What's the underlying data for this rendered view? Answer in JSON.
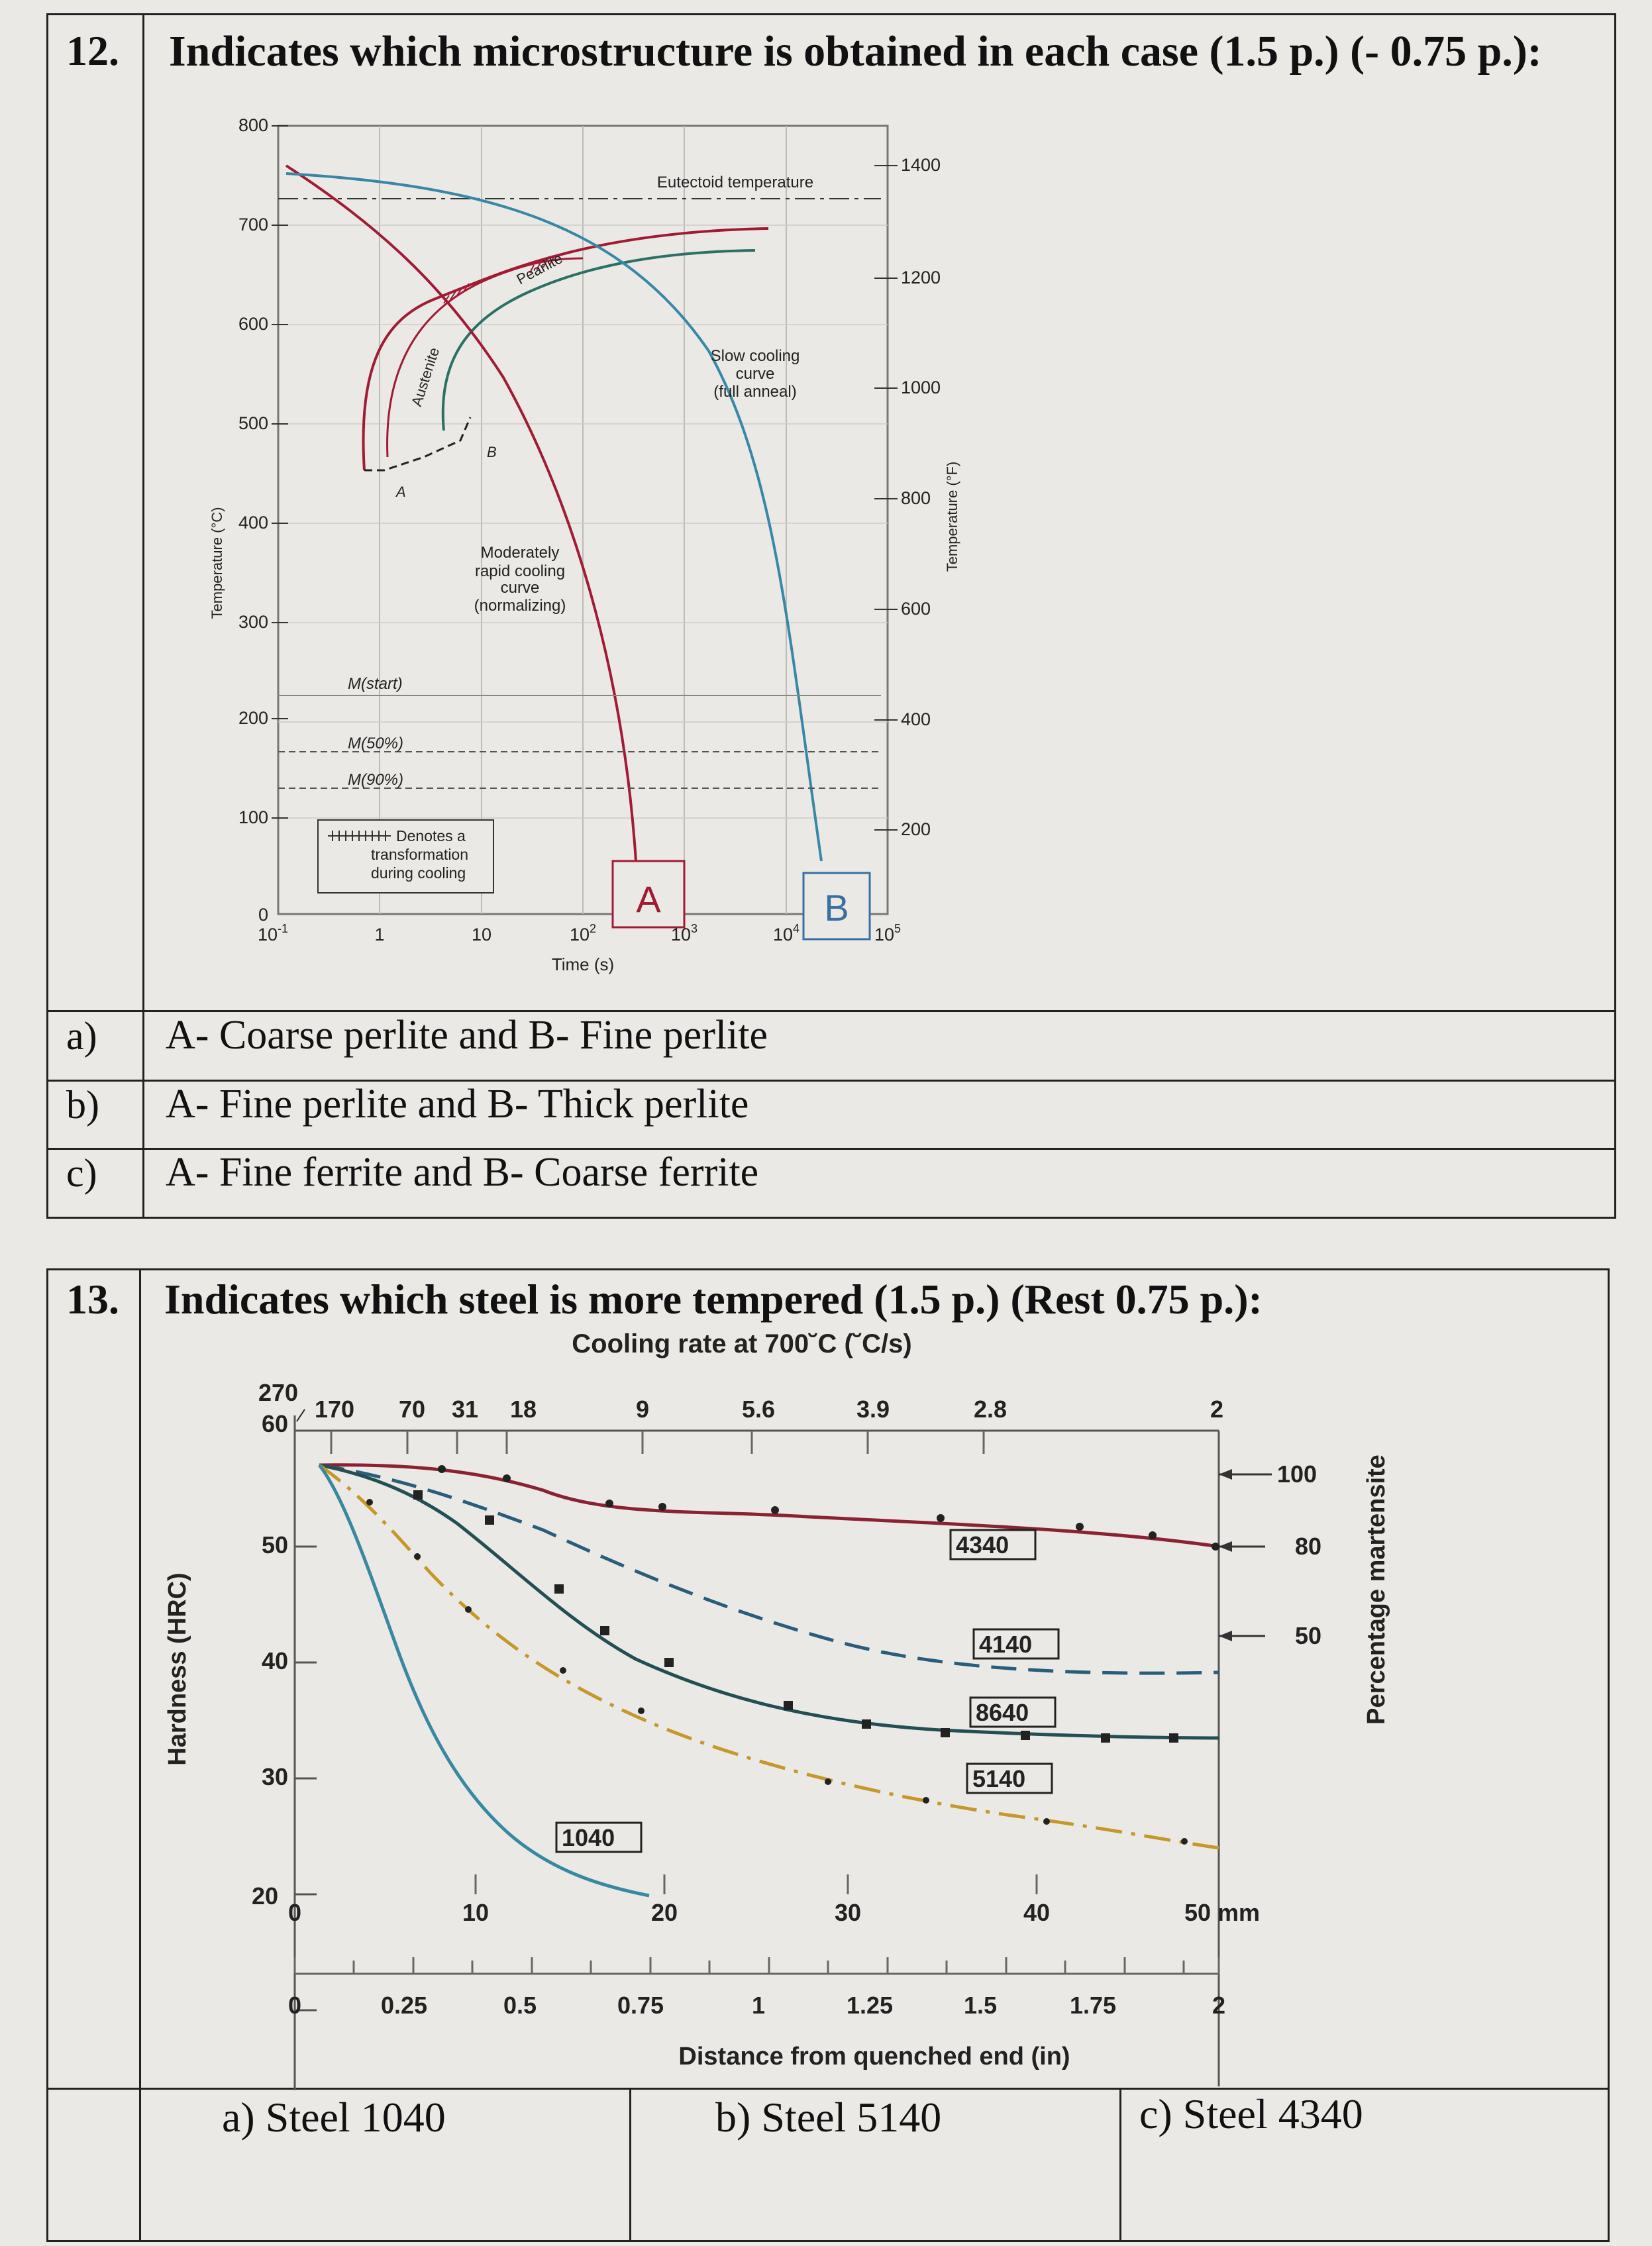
{
  "q12": {
    "number": "12.",
    "question": "Indicates which microstructure is obtained in each case (1.5 p.) (- 0.75 p.):",
    "options": [
      {
        "letter": "a)",
        "text": "A- Coarse perlite and B- Fine perlite"
      },
      {
        "letter": "b)",
        "text": "A- Fine perlite and B- Thick perlite"
      },
      {
        "letter": "c)",
        "text": "A- Fine ferrite and B- Coarse ferrite"
      }
    ],
    "chart": {
      "ylabel_c": "Temperature (°C)",
      "ylabel_f": "Temperature (°F)",
      "xlabel": "Time (s)",
      "yticks_c": [
        "800",
        "700",
        "600",
        "500",
        "400",
        "300",
        "200",
        "100",
        "0"
      ],
      "yticks_f": [
        "1400",
        "1200",
        "1000",
        "800",
        "600",
        "400",
        "200"
      ],
      "xticks": [
        "10",
        "1",
        "10",
        "10",
        "10",
        "10",
        "10"
      ],
      "xticks_exp": [
        "-1",
        "",
        "",
        "2",
        "3",
        "4",
        "5"
      ],
      "labels": {
        "eutectoid": "Eutectoid temperature",
        "pearlite": "Pearlite",
        "austenite": "Austenite",
        "b_point": "B",
        "a_point": "A",
        "slow1": "Slow cooling",
        "slow2": "curve",
        "slow3": "(full anneal)",
        "mod1": "Moderately",
        "mod2": "rapid cooling",
        "mod3": "curve",
        "mod4": "(normalizing)",
        "mstart": "M(start)",
        "m50": "M(50%)",
        "m90": "M(90%)",
        "legend1": "Denotes a",
        "legend2": "transformation",
        "legend3": "during cooling",
        "boxA": "A",
        "boxB": "B"
      }
    }
  },
  "q13": {
    "number": "13.",
    "question": "Indicates which steel is more tempered (1.5 p.) (Rest 0.75 p.):",
    "chart": {
      "title": "Cooling rate at 700˘C (˘C/s)",
      "top_ticks": [
        "270",
        "170",
        "70",
        "31",
        "18",
        "9",
        "5.6",
        "3.9",
        "2.8",
        "2"
      ],
      "ylabel": "Hardness (HRC)",
      "yticks": [
        "60",
        "50",
        "40",
        "30",
        "20"
      ],
      "right_label": "Percentage martensite",
      "right_ticks": [
        "100",
        "80",
        "50"
      ],
      "mm_ticks": [
        "0",
        "10",
        "20",
        "30",
        "40",
        "50 mm"
      ],
      "in_ticks": [
        "0",
        "0.25",
        "0.5",
        "0.75",
        "1",
        "1.25",
        "1.5",
        "1.75",
        "2"
      ],
      "xlabel": "Distance from quenched end (in)",
      "steels": [
        "4340",
        "4140",
        "8640",
        "5140",
        "1040"
      ]
    },
    "answers": [
      "a) Steel 1040",
      "b) Steel 5140",
      "c) Steel 4340"
    ]
  }
}
